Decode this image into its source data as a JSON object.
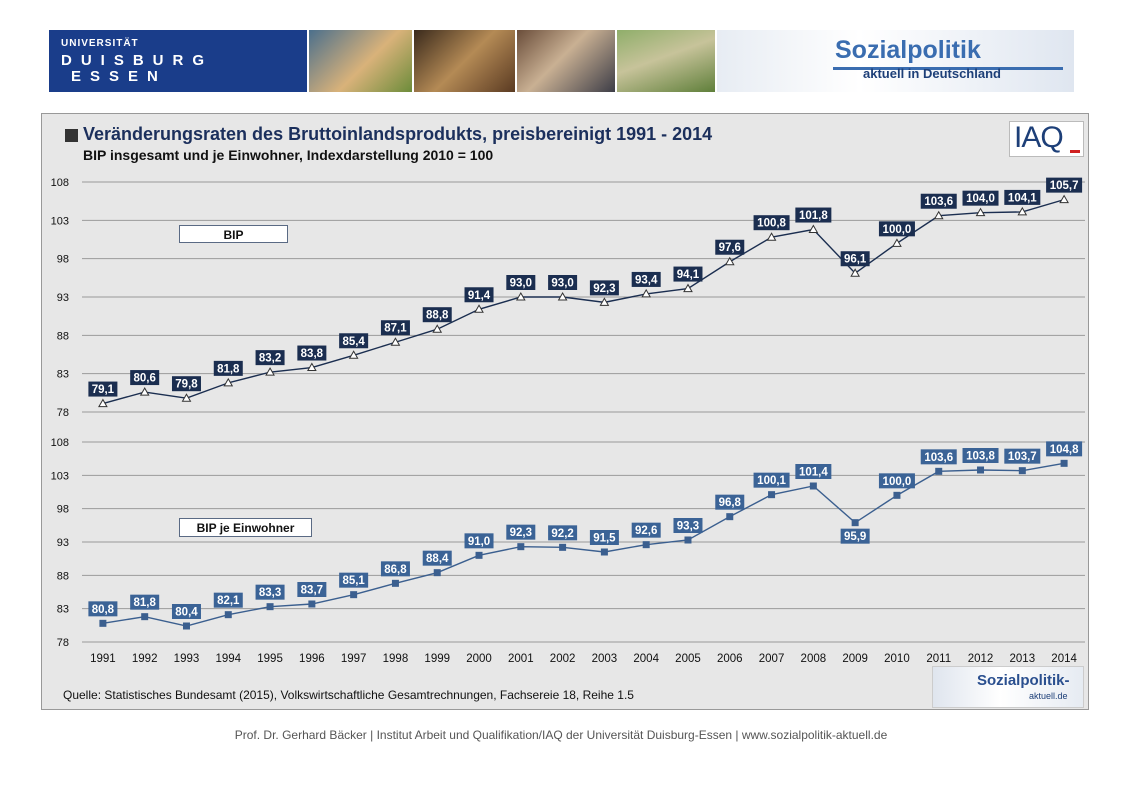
{
  "header": {
    "university_line1": "UNIVERSITÄT",
    "university_line2": "DUISBURG",
    "university_line3": "ESSEN",
    "portal_title": "Sozialpolitik",
    "portal_subtitle": "aktuell in Deutschland"
  },
  "chart": {
    "title": "Veränderungsraten des Bruttoinlandsprodukts, preisbereinigt 1991 - 2014",
    "subtitle": "BIP insgesamt und je Einwohner, Indexdarstellung 2010 = 100",
    "iaq_logo": "IAQ",
    "source": "Quelle: Statistisches Bundesamt (2015),  Volkswirtschaftliche Gesamtrechnungen,  Fachsereie  18,  Reihe  1.5",
    "small_logo_text": "Sozialpolitik-",
    "small_logo_domain": "aktuell.de"
  },
  "chart_data": {
    "type": "line",
    "x": [
      "1991",
      "1992",
      "1993",
      "1994",
      "1995",
      "1996",
      "1997",
      "1998",
      "1999",
      "2000",
      "2001",
      "2002",
      "2003",
      "2004",
      "2005",
      "2006",
      "2007",
      "2008",
      "2009",
      "2010",
      "2011",
      "2012",
      "2013",
      "2014"
    ],
    "yticks": [
      "108",
      "103",
      "98",
      "93",
      "88",
      "83",
      "78"
    ],
    "ylim": [
      78,
      108
    ],
    "grid": true,
    "series": [
      {
        "name": "BIP",
        "marker": "triangle",
        "label_bg": "#1b2e50",
        "line_color": "#1b2e50",
        "values": [
          79.1,
          80.6,
          79.8,
          81.8,
          83.2,
          83.8,
          85.4,
          87.1,
          88.8,
          91.4,
          93.0,
          93.0,
          92.3,
          93.4,
          94.1,
          97.6,
          100.8,
          101.8,
          96.1,
          100.0,
          103.6,
          104.0,
          104.1,
          105.7
        ],
        "labels": [
          "79,1",
          "80,6",
          "79,8",
          "81,8",
          "83,2",
          "83,8",
          "85,4",
          "87,1",
          "88,8",
          "91,4",
          "93,0",
          "93,0",
          "92,3",
          "93,4",
          "94,1",
          "97,6",
          "100,8",
          "101,8",
          "96,1",
          "100,0",
          "103,6",
          "104,0",
          "104,1",
          "105,7"
        ]
      },
      {
        "name": "BIP je Einwohner",
        "marker": "square",
        "label_bg": "#3b6396",
        "line_color": "#3b5f8f",
        "values": [
          80.8,
          81.8,
          80.4,
          82.1,
          83.3,
          83.7,
          85.1,
          86.8,
          88.4,
          91.0,
          92.3,
          92.2,
          91.5,
          92.6,
          93.3,
          96.8,
          100.1,
          101.4,
          95.9,
          100.0,
          103.6,
          103.8,
          103.7,
          104.8
        ],
        "labels": [
          "80,8",
          "81,8",
          "80,4",
          "82,1",
          "83,3",
          "83,7",
          "85,1",
          "86,8",
          "88,4",
          "91,0",
          "92,3",
          "92,2",
          "91,5",
          "92,6",
          "93,3",
          "96,8",
          "100,1",
          "101,4",
          "95,9",
          "100,0",
          "103,6",
          "103,8",
          "103,7",
          "104,8"
        ]
      }
    ]
  },
  "footer": "Prof. Dr. Gerhard Bäcker | Institut Arbeit und Qualifikation/IAQ der Universität Duisburg-Essen | www.sozialpolitik-aktuell.de"
}
